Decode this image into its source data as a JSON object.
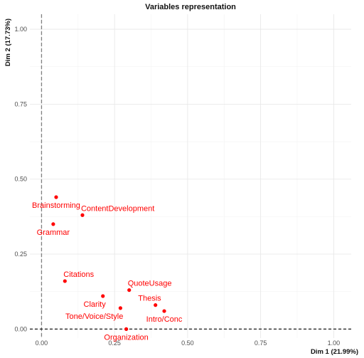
{
  "chart_data": {
    "type": "scatter",
    "title": "Variables representation",
    "xlabel": "Dim 1 (21.99%)",
    "ylabel": "Dim 2 (17.73%)",
    "xlim": [
      -0.04,
      1.06
    ],
    "ylim": [
      -0.03,
      1.05
    ],
    "xticks": [
      0.0,
      0.25,
      0.5,
      0.75,
      1.0
    ],
    "xtick_labels": [
      "0.00",
      "0.25",
      "0.50",
      "0.75",
      "1.00"
    ],
    "yticks": [
      0.0,
      0.25,
      0.5,
      0.75,
      1.0
    ],
    "ytick_labels": [
      "0.00",
      "0.25",
      "0.50",
      "0.75",
      "1.00"
    ],
    "grid": true,
    "reference_lines": {
      "x": 0,
      "y": 0
    },
    "point_color": "#ff0000",
    "points": [
      {
        "label": "Brainstorming",
        "x": 0.05,
        "y": 0.44,
        "label_pos": "below"
      },
      {
        "label": "ContentDevelopment",
        "x": 0.14,
        "y": 0.38,
        "label_pos": "above-right"
      },
      {
        "label": "Grammar",
        "x": 0.04,
        "y": 0.35,
        "label_pos": "below"
      },
      {
        "label": "Citations",
        "x": 0.08,
        "y": 0.16,
        "label_pos": "above-right"
      },
      {
        "label": "QuoteUsage",
        "x": 0.3,
        "y": 0.13,
        "label_pos": "above-right"
      },
      {
        "label": "Clarity",
        "x": 0.21,
        "y": 0.11,
        "label_pos": "below-left"
      },
      {
        "label": "Thesis",
        "x": 0.39,
        "y": 0.08,
        "label_pos": "above-left"
      },
      {
        "label": "Tone/Voice/Style",
        "x": 0.27,
        "y": 0.07,
        "label_pos": "below-left"
      },
      {
        "label": "Intro/Conc",
        "x": 0.42,
        "y": 0.06,
        "label_pos": "below"
      },
      {
        "label": "Organization",
        "x": 0.29,
        "y": 0.0,
        "label_pos": "below"
      }
    ]
  }
}
